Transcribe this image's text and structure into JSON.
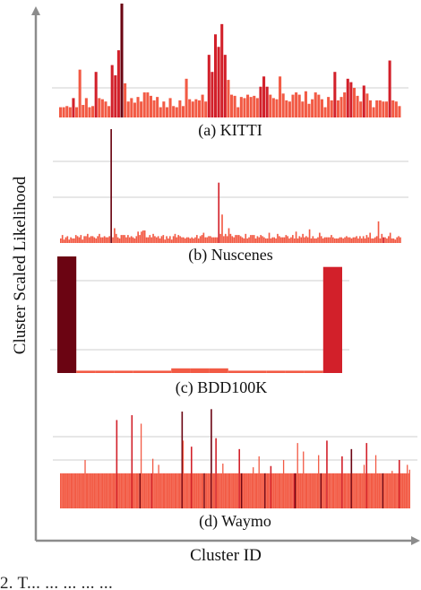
{
  "figure": {
    "ylabel": "Cluster Scaled Likelihood",
    "xlabel": "Cluster ID",
    "caption": "2. T... ... ... ... ..."
  },
  "colors": {
    "light": "#f25a44",
    "mid": "#d2202a",
    "dark": "#6b0412",
    "grid": "#cfcfcf",
    "axis": "#8c8c8c"
  },
  "chart_data": [
    {
      "type": "bar",
      "title": "(a) KITTI",
      "values": [
        0.09,
        0.09,
        0.1,
        0.09,
        0.17,
        0.09,
        0.42,
        0.11,
        0.17,
        0.09,
        0.1,
        0.4,
        0.17,
        0.16,
        0.14,
        0.1,
        0.46,
        0.37,
        0.59,
        1.0,
        0.3,
        0.14,
        0.17,
        0.13,
        0.18,
        0.14,
        0.22,
        0.22,
        0.19,
        0.15,
        0.18,
        0.09,
        0.14,
        0.09,
        0.17,
        0.1,
        0.09,
        0.15,
        0.1,
        0.34,
        0.16,
        0.14,
        0.16,
        0.15,
        0.2,
        0.14,
        0.55,
        0.4,
        0.73,
        0.62,
        0.82,
        0.55,
        0.33,
        0.2,
        0.19,
        0.09,
        0.18,
        0.17,
        0.2,
        0.18,
        0.19,
        0.17,
        0.27,
        0.36,
        0.27,
        0.2,
        0.17,
        0.16,
        0.36,
        0.21,
        0.15,
        0.14,
        0.2,
        0.22,
        0.2,
        0.14,
        0.23,
        0.12,
        0.16,
        0.22,
        0.2,
        0.16,
        0.09,
        0.18,
        0.15,
        0.4,
        0.15,
        0.18,
        0.22,
        0.34,
        0.31,
        0.26,
        0.19,
        0.14,
        0.28,
        0.21,
        0.15,
        0.09,
        0.15,
        0.15,
        0.14,
        0.14,
        0.5,
        0.15,
        0.14,
        0.1
      ],
      "darkIdx": [
        19
      ],
      "midIdx": [
        4,
        11,
        16,
        17,
        18,
        46,
        47,
        48,
        49,
        50,
        51,
        62,
        63,
        64,
        85,
        89,
        90,
        94,
        102
      ]
    },
    {
      "type": "bar",
      "title": "(b) Nuscenes",
      "values": [
        0.04,
        0.07,
        0.03,
        0.05,
        0.06,
        0.03,
        0.05,
        0.04,
        0.04,
        0.07,
        0.06,
        0.05,
        0.07,
        0.03,
        0.06,
        0.06,
        0.08,
        0.05,
        0.06,
        0.06,
        0.05,
        0.04,
        0.06,
        0.08,
        0.05,
        0.05,
        0.06,
        0.05,
        0.05,
        0.06,
        1.0,
        0.05,
        0.13,
        0.08,
        0.05,
        0.04,
        0.07,
        0.07,
        0.07,
        0.05,
        0.07,
        0.05,
        0.06,
        0.05,
        0.04,
        0.06,
        0.1,
        0.07,
        0.1,
        0.11,
        0.11,
        0.05,
        0.05,
        0.07,
        0.05,
        0.08,
        0.06,
        0.05,
        0.06,
        0.04,
        0.06,
        0.07,
        0.03,
        0.06,
        0.04,
        0.06,
        0.03,
        0.06,
        0.08,
        0.05,
        0.07,
        0.06,
        0.05,
        0.05,
        0.04,
        0.05,
        0.05,
        0.04,
        0.05,
        0.04,
        0.05,
        0.07,
        0.04,
        0.06,
        0.07,
        0.09,
        0.05,
        0.05,
        0.06,
        0.06,
        0.05,
        0.05,
        0.05,
        0.05,
        0.53,
        0.08,
        0.25,
        0.06,
        0.08,
        0.06,
        0.13,
        0.08,
        0.06,
        0.05,
        0.07,
        0.07,
        0.07,
        0.06,
        0.05,
        0.04,
        0.08,
        0.04,
        0.05,
        0.07,
        0.07,
        0.07,
        0.04,
        0.06,
        0.05,
        0.07,
        0.06,
        0.05,
        0.04,
        0.04,
        0.09,
        0.04,
        0.05,
        0.05,
        0.04,
        0.08,
        0.06,
        0.05,
        0.05,
        0.05,
        0.07,
        0.06,
        0.04,
        0.05,
        0.07,
        0.04,
        0.1,
        0.04,
        0.06,
        0.05,
        0.08,
        0.05,
        0.06,
        0.05,
        0.12,
        0.04,
        0.06,
        0.04,
        0.04,
        0.05,
        0.09,
        0.06,
        0.04,
        0.05,
        0.05,
        0.05,
        0.05,
        0.07,
        0.05,
        0.04,
        0.04,
        0.04,
        0.05,
        0.05,
        0.04,
        0.05,
        0.06,
        0.05,
        0.05,
        0.04,
        0.05,
        0.05,
        0.06,
        0.04,
        0.06,
        0.04,
        0.06,
        0.04,
        0.07,
        0.05,
        0.09,
        0.04,
        0.04,
        0.05,
        0.06,
        0.19,
        0.04,
        0.08,
        0.05,
        0.05,
        0.04,
        0.06,
        0.09,
        0.04,
        0.04,
        0.03,
        0.05,
        0.06,
        0.05
      ],
      "darkIdx": [
        30
      ],
      "midIdx": [
        94,
        192
      ]
    },
    {
      "type": "bar",
      "title": "(c) BDD100K",
      "values": [
        1.0,
        0.02,
        0.02,
        0.02,
        0.02,
        0.02,
        0.04,
        0.04,
        0.04,
        0.02,
        0.02,
        0.02,
        0.02,
        0.02,
        0.91
      ],
      "darkIdx": [
        0
      ],
      "midIdx": [
        14
      ]
    },
    {
      "type": "bar",
      "title": "(d) Waymo",
      "n": 300,
      "base": 0.29,
      "spikes": [
        [
          21,
          0.4
        ],
        [
          48,
          0.73
        ],
        [
          61,
          0.77
        ],
        [
          69,
          0.7
        ],
        [
          79,
          0.41
        ],
        [
          84,
          0.36
        ],
        [
          104,
          0.8
        ],
        [
          105,
          0.56
        ],
        [
          112,
          0.51
        ],
        [
          129,
          0.82
        ],
        [
          133,
          0.58
        ],
        [
          139,
          0.37
        ],
        [
          153,
          0.49
        ],
        [
          165,
          0.34
        ],
        [
          170,
          0.43
        ],
        [
          180,
          0.35
        ],
        [
          191,
          0.4
        ],
        [
          203,
          0.54
        ],
        [
          208,
          0.47
        ],
        [
          221,
          0.44
        ],
        [
          228,
          0.56
        ],
        [
          241,
          0.43
        ],
        [
          249,
          0.49
        ],
        [
          260,
          0.36
        ],
        [
          262,
          0.54
        ],
        [
          270,
          0.44
        ],
        [
          284,
          0.31
        ],
        [
          290,
          0.4
        ],
        [
          297,
          0.36
        ],
        [
          299,
          0.32
        ]
      ],
      "darkIdx": [
        68,
        104,
        123,
        129,
        155,
        175,
        201,
        223,
        249,
        276
      ],
      "midIdx": [
        48,
        61,
        78,
        112,
        133,
        153,
        180,
        200,
        228,
        241,
        262,
        290
      ]
    }
  ]
}
